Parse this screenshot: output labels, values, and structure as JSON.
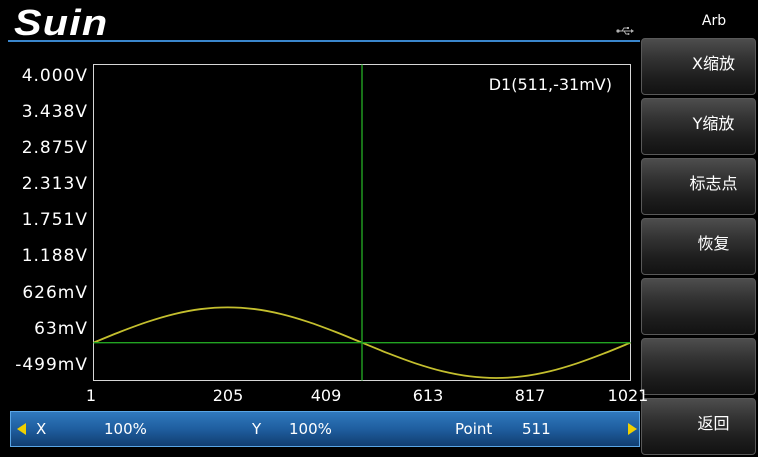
{
  "header": {
    "logo": "Suin",
    "usb_icon": "usb-icon"
  },
  "menu": {
    "title": "Arb",
    "buttons": [
      {
        "label": "X缩放"
      },
      {
        "label": "Y缩放"
      },
      {
        "label": "标志点"
      },
      {
        "label": "恢复"
      },
      {
        "label": ""
      },
      {
        "label": ""
      },
      {
        "label": "返回"
      }
    ]
  },
  "parameter_bar": {
    "prev_icon": "left-arrow-icon",
    "x_label": "X",
    "x_value": "100%",
    "y_label": "Y",
    "y_value": "100%",
    "point_label": "Point",
    "point_value": "511",
    "next_icon": "right-arrow-icon"
  },
  "colors": {
    "background": "#000000",
    "waveform": "#c4bf2e",
    "cursor": "#22a322",
    "arrow": "#f0d000",
    "parameter_bar": "#1f5e9f",
    "header_line": "#3a86cc"
  },
  "chart_data": {
    "type": "line",
    "xlim": [
      1,
      1021
    ],
    "ylim": [
      -0.62,
      4.3
    ],
    "x_ticks": [
      1,
      205,
      409,
      613,
      817,
      1021
    ],
    "y_tick_labels": [
      "4.000V",
      "3.438V",
      "2.875V",
      "2.313V",
      "1.751V",
      "1.188V",
      "626mV",
      "63mV",
      "-499mV"
    ],
    "grid": false,
    "series": [
      {
        "x": [
          1,
          52,
          103,
          154,
          205,
          256,
          307,
          358,
          409,
          460,
          511,
          562,
          613,
          664,
          715,
          766,
          817,
          868,
          919,
          970,
          1021
        ],
        "y": [
          -0.031,
          0.139,
          0.292,
          0.414,
          0.492,
          0.519,
          0.492,
          0.414,
          0.292,
          0.139,
          -0.031,
          -0.201,
          -0.354,
          -0.476,
          -0.554,
          -0.581,
          -0.554,
          -0.476,
          -0.354,
          -0.201,
          -0.031
        ]
      }
    ],
    "cursor": {
      "label": "D1(511,-31mV)",
      "x": 511,
      "y": -0.031
    }
  }
}
